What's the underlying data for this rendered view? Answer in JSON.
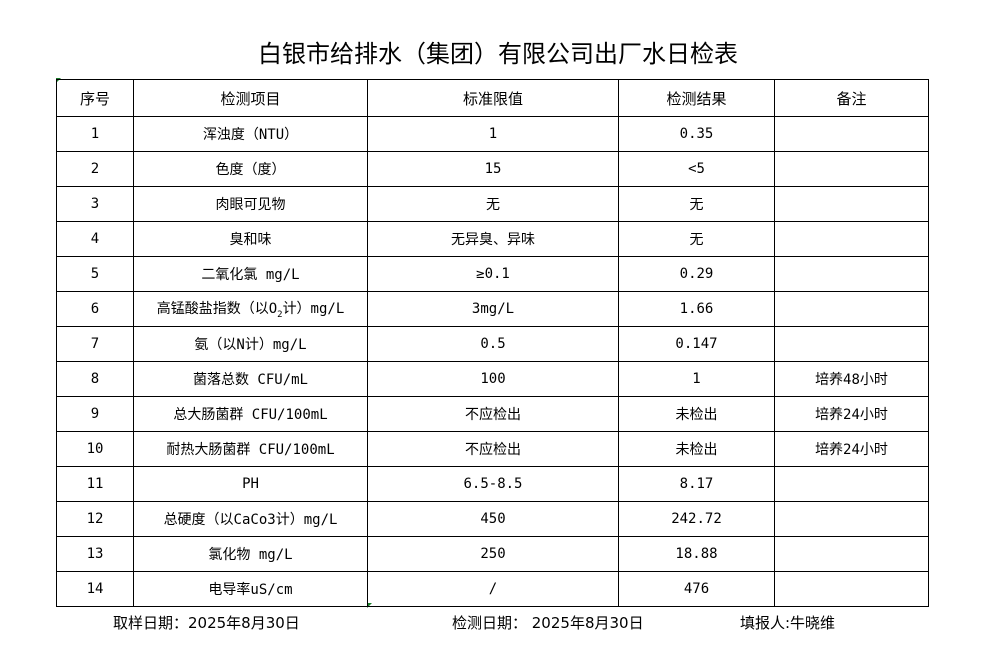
{
  "title": "白银市给排水（集团）有限公司出厂水日检表",
  "headers": [
    "序号",
    "检测项目",
    "标准限值",
    "检测结果",
    "备注"
  ],
  "rows": [
    {
      "no": "1",
      "item": "浑浊度（NTU）",
      "limit": "1",
      "result": "0.35",
      "note": ""
    },
    {
      "no": "2",
      "item": "色度（度）",
      "limit": "15",
      "result": "<5",
      "note": ""
    },
    {
      "no": "3",
      "item": "肉眼可见物",
      "limit": "无",
      "result": "无",
      "note": ""
    },
    {
      "no": "4",
      "item": "臭和味",
      "limit": "无异臭、异味",
      "result": "无",
      "note": ""
    },
    {
      "no": "5",
      "item": "二氧化氯 mg/L",
      "limit": "≥0.1",
      "result": "0.29",
      "note": ""
    },
    {
      "no": "6",
      "item": "高锰酸盐指数（以O",
      "item_sub": "2",
      "item_post": "计）mg/L",
      "limit": "3mg/L",
      "result": "1.66",
      "note": ""
    },
    {
      "no": "7",
      "item": "氨（以N计）mg/L",
      "limit": "0.5",
      "result": "0.147",
      "note": ""
    },
    {
      "no": "8",
      "item": "菌落总数 CFU/mL",
      "limit": "100",
      "result": "1",
      "note": "培养48小时"
    },
    {
      "no": "9",
      "item": "总大肠菌群 CFU/100mL",
      "limit": "不应检出",
      "result": "未检出",
      "note": "培养24小时"
    },
    {
      "no": "10",
      "item": "耐热大肠菌群 CFU/100mL",
      "limit": "不应检出",
      "result": "未检出",
      "note": "培养24小时"
    },
    {
      "no": "11",
      "item": "PH",
      "limit": "6.5-8.5",
      "result": "8.17",
      "note": ""
    },
    {
      "no": "12",
      "item": "总硬度（以CaCo3计）mg/L",
      "limit": "450",
      "result": "242.72",
      "note": ""
    },
    {
      "no": "13",
      "item": "氯化物 mg/L",
      "limit": "250",
      "result": "18.88",
      "note": ""
    },
    {
      "no": "14",
      "item": "电导率uS/cm",
      "limit": "/",
      "result": "476",
      "note": ""
    }
  ],
  "footer": {
    "sample_date": "取样日期：2025年8月30日",
    "test_date": "检测日期： 2025年8月30日",
    "reporter": "填报人:牛晓维"
  }
}
